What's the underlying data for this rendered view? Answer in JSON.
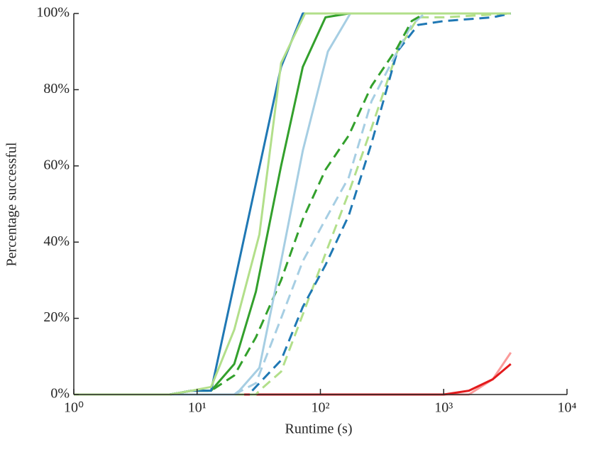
{
  "chart_data": {
    "type": "line",
    "xlabel": "Runtime (s)",
    "ylabel": "Percentage successful",
    "xscale": "log",
    "xlim": [
      1,
      10000
    ],
    "ylim": [
      0,
      100
    ],
    "xticks": [
      {
        "value": 1,
        "label": "10⁰"
      },
      {
        "value": 10,
        "label": "10¹"
      },
      {
        "value": 100,
        "label": "10²"
      },
      {
        "value": 1000,
        "label": "10³"
      },
      {
        "value": 10000,
        "label": "10⁴"
      }
    ],
    "yticks": [
      {
        "value": 0,
        "label": "0%"
      },
      {
        "value": 20,
        "label": "20%"
      },
      {
        "value": 40,
        "label": "40%"
      },
      {
        "value": 60,
        "label": "60%"
      },
      {
        "value": 80,
        "label": "80%"
      },
      {
        "value": 100,
        "label": "100%"
      }
    ],
    "series": [
      {
        "color": "#fb9a99",
        "dash": "solid",
        "x": [
          1,
          1000,
          1600,
          2500,
          3500
        ],
        "values": [
          0,
          0,
          0,
          4,
          11
        ]
      },
      {
        "color": "#e31a1c",
        "dash": "solid",
        "x": [
          1,
          1000,
          1600,
          2500,
          3500
        ],
        "values": [
          0,
          0,
          1,
          4,
          8
        ]
      },
      {
        "color": "#b2df8a",
        "dash": "dashed",
        "x": [
          20,
          30,
          32,
          48,
          72,
          110,
          170,
          260,
          420,
          620,
          1000,
          3500
        ],
        "values": [
          0,
          0,
          1,
          6,
          21,
          37,
          53,
          70,
          90,
          99,
          99,
          100
        ]
      },
      {
        "color": "#1f78b4",
        "dash": "dashed",
        "x": [
          28,
          32,
          48,
          72,
          110,
          170,
          260,
          420,
          620,
          1000,
          2500,
          3500
        ],
        "values": [
          1,
          3,
          9,
          23,
          34,
          47,
          66,
          90,
          97,
          98,
          99,
          100
        ]
      },
      {
        "color": "#a6cee3",
        "dash": "dashed",
        "x": [
          20,
          30,
          48,
          72,
          110,
          170,
          260,
          420,
          550,
          700,
          3500
        ],
        "values": [
          0,
          3,
          20,
          35,
          46,
          57,
          77,
          90,
          97,
          100,
          100
        ]
      },
      {
        "color": "#33a02c",
        "dash": "dashed",
        "x": [
          1,
          6,
          9,
          13,
          20,
          30,
          48,
          72,
          110,
          170,
          260,
          420,
          550,
          700,
          3500
        ],
        "values": [
          0,
          0,
          1,
          1,
          5,
          15,
          30,
          46,
          59,
          68,
          81,
          91,
          98,
          100,
          100
        ]
      },
      {
        "color": "#a6cee3",
        "dash": "solid",
        "x": [
          1,
          6,
          20,
          22,
          32,
          48,
          72,
          115,
          175,
          3500
        ],
        "values": [
          0,
          0,
          0,
          1,
          7,
          35,
          64,
          90,
          100,
          100
        ]
      },
      {
        "color": "#33a02c",
        "dash": "solid",
        "x": [
          1,
          6,
          9,
          13,
          20,
          30,
          48,
          72,
          110,
          170,
          3500
        ],
        "values": [
          0,
          0,
          1,
          1,
          8,
          27,
          60,
          86,
          99,
          100,
          100
        ]
      },
      {
        "color": "#1f78b4",
        "dash": "solid",
        "x": [
          1,
          6,
          9,
          13,
          48,
          72,
          3500
        ],
        "values": [
          0,
          0,
          1,
          1,
          86,
          100,
          100
        ]
      },
      {
        "color": "#b2df8a",
        "dash": "solid",
        "x": [
          1,
          6,
          9,
          13,
          20,
          32,
          48,
          75,
          3500
        ],
        "values": [
          0,
          0,
          1,
          2,
          17,
          42,
          87,
          100,
          100
        ]
      }
    ]
  }
}
